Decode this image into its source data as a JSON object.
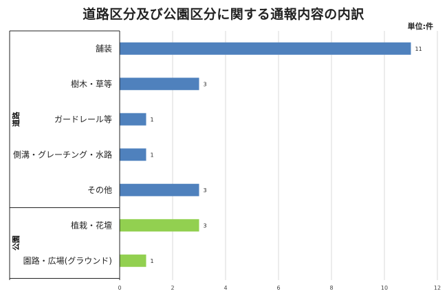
{
  "chart_data": {
    "type": "bar",
    "orientation": "horizontal",
    "title": "道路区分及び公園区分に関する通報内容の内訳",
    "unit": "単位:件",
    "groups": [
      {
        "name": "道路",
        "color": "#4f81bd",
        "categories": [
          "舗装",
          "樹木・草等",
          "ガードレール等",
          "側溝・グレーチング・水路",
          "その他"
        ],
        "values": [
          11,
          3,
          1,
          1,
          3
        ]
      },
      {
        "name": "公園",
        "color": "#92d050",
        "categories": [
          "植栽・花壇",
          "園路・広場(グラウンド)"
        ],
        "values": [
          3,
          1
        ]
      }
    ],
    "xlim": [
      0,
      12
    ],
    "xticks": [
      0,
      2,
      4,
      6,
      8,
      10,
      12
    ],
    "grid": true
  }
}
